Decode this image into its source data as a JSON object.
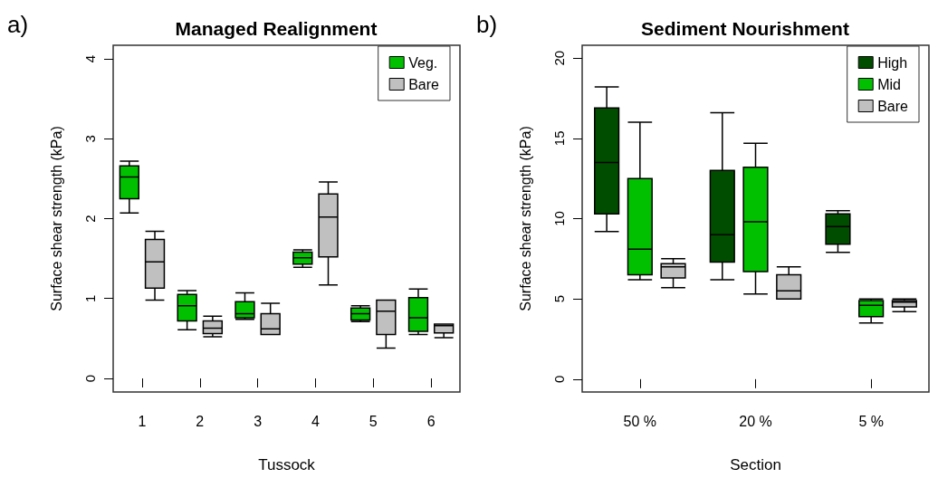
{
  "chart_data": [
    {
      "type": "box",
      "title": "Managed Realignment",
      "xlabel": "Tussock",
      "ylabel": "Surface shear strength (kPa)",
      "annotations": [
        "a)"
      ],
      "categories": [
        "1",
        "2",
        "3",
        "4",
        "5",
        "6"
      ],
      "ylim": [
        -0.17,
        4.17
      ],
      "yticks": [
        0,
        1,
        2,
        3,
        4
      ],
      "legend": "top right",
      "series": [
        {
          "name": "Veg.",
          "color": "#00c000",
          "boxes": [
            {
              "low": 2.07,
              "q1": 2.25,
              "median": 2.52,
              "q3": 2.66,
              "high": 2.72
            },
            {
              "low": 0.61,
              "q1": 0.72,
              "median": 0.91,
              "q3": 1.05,
              "high": 1.1
            },
            {
              "low": 0.74,
              "q1": 0.76,
              "median": 0.81,
              "q3": 0.96,
              "high": 1.07
            },
            {
              "low": 1.39,
              "q1": 1.43,
              "median": 1.51,
              "q3": 1.58,
              "high": 1.61
            },
            {
              "low": 0.71,
              "q1": 0.73,
              "median": 0.81,
              "q3": 0.88,
              "high": 0.91
            },
            {
              "low": 0.55,
              "q1": 0.59,
              "median": 0.76,
              "q3": 1.01,
              "high": 1.12
            }
          ]
        },
        {
          "name": "Bare",
          "color": "#c0c0c0",
          "boxes": [
            {
              "low": 0.98,
              "q1": 1.13,
              "median": 1.46,
              "q3": 1.74,
              "high": 1.84
            },
            {
              "low": 0.52,
              "q1": 0.56,
              "median": 0.63,
              "q3": 0.72,
              "high": 0.78
            },
            {
              "low": 0.55,
              "q1": 0.55,
              "median": 0.62,
              "q3": 0.81,
              "high": 0.94
            },
            {
              "low": 1.17,
              "q1": 1.52,
              "median": 2.02,
              "q3": 2.31,
              "high": 2.46
            },
            {
              "low": 0.38,
              "q1": 0.55,
              "median": 0.84,
              "q3": 0.98,
              "high": 0.98
            },
            {
              "low": 0.51,
              "q1": 0.57,
              "median": 0.66,
              "q3": 0.68,
              "high": 0.68
            }
          ]
        }
      ]
    },
    {
      "type": "box",
      "title": "Sediment Nourishment",
      "xlabel": "Section",
      "ylabel": "Surface shear strength (kPa)",
      "annotations": [
        "b)"
      ],
      "categories": [
        "50 %",
        "20 %",
        "5 %"
      ],
      "ylim": [
        -0.8,
        20.8
      ],
      "yticks": [
        0,
        5,
        10,
        15,
        20
      ],
      "legend": "top right",
      "series": [
        {
          "name": "High",
          "color": "#004d00",
          "boxes": [
            {
              "low": 9.2,
              "q1": 10.3,
              "median": 13.5,
              "q3": 16.9,
              "high": 18.2
            },
            {
              "low": 6.2,
              "q1": 7.3,
              "median": 9.0,
              "q3": 13.0,
              "high": 16.6
            },
            {
              "low": 7.9,
              "q1": 8.4,
              "median": 9.5,
              "q3": 10.3,
              "high": 10.5
            }
          ]
        },
        {
          "name": "Mid",
          "color": "#00c000",
          "boxes": [
            {
              "low": 6.2,
              "q1": 6.5,
              "median": 8.1,
              "q3": 12.5,
              "high": 16.0
            },
            {
              "low": 5.3,
              "q1": 6.7,
              "median": 9.8,
              "q3": 13.2,
              "high": 14.7
            },
            {
              "low": 3.5,
              "q1": 3.9,
              "median": 4.6,
              "q3": 4.9,
              "high": 5.0
            }
          ]
        },
        {
          "name": "Bare",
          "color": "#c0c0c0",
          "boxes": [
            {
              "low": 5.7,
              "q1": 6.3,
              "median": 7.0,
              "q3": 7.2,
              "high": 7.5
            },
            {
              "low": 5.0,
              "q1": 5.0,
              "median": 5.5,
              "q3": 6.5,
              "high": 7.0
            },
            {
              "low": 4.2,
              "q1": 4.5,
              "median": 4.8,
              "q3": 4.9,
              "high": 5.0
            }
          ]
        }
      ]
    }
  ]
}
